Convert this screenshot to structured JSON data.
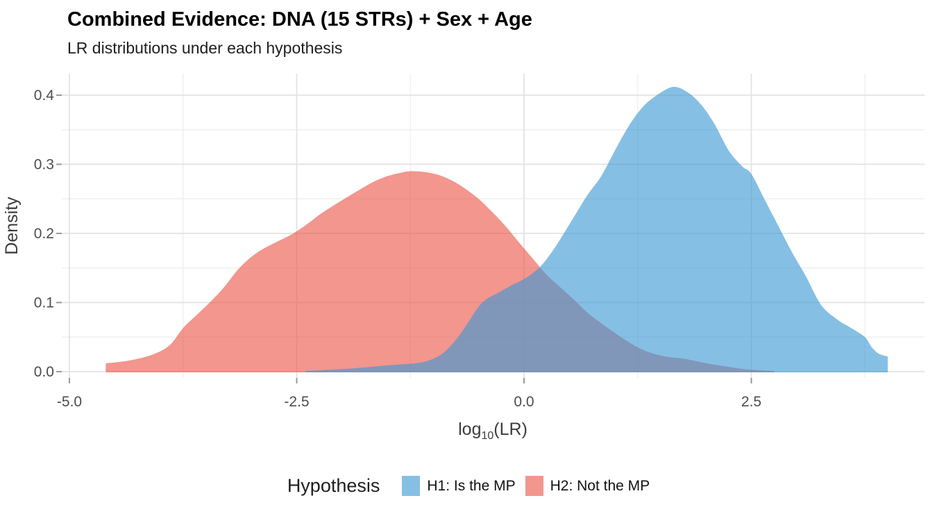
{
  "title": "Combined Evidence: DNA (15 STRs) + Sex + Age",
  "subtitle": "LR distributions under each hypothesis",
  "chart_data": {
    "type": "area",
    "title": "Combined Evidence: DNA (15 STRs) + Sex + Age",
    "subtitle": "LR distributions under each hypothesis",
    "xlabel": "log10(LR)",
    "xlabel_parts": {
      "prefix": "log",
      "sub": "10",
      "suffix": "(LR)"
    },
    "ylabel": "Density",
    "xlim": [
      -5.08,
      4.4
    ],
    "ylim": [
      0,
      0.431
    ],
    "grid": true,
    "legend_position": "bottom",
    "legend_title": "Hypothesis",
    "x_ticks": [
      {
        "v": -5.0,
        "label": "-5.0"
      },
      {
        "v": -2.5,
        "label": "-2.5"
      },
      {
        "v": 0.0,
        "label": "0.0"
      },
      {
        "v": 2.5,
        "label": "2.5"
      }
    ],
    "x_minor": [
      -3.75,
      -1.25,
      1.25,
      3.75
    ],
    "y_ticks": [
      {
        "v": 0.0,
        "label": "0.0"
      },
      {
        "v": 0.1,
        "label": "0.1"
      },
      {
        "v": 0.2,
        "label": "0.2"
      },
      {
        "v": 0.3,
        "label": "0.3"
      },
      {
        "v": 0.4,
        "label": "0.4"
      }
    ],
    "y_minor": [
      0.05,
      0.15,
      0.25,
      0.35
    ],
    "series": [
      {
        "name": "H1: Is the MP",
        "color": "#3B97D3",
        "opacity": 0.62,
        "peak": {
          "x": 1.64,
          "density": 0.41
        },
        "points": [
          [
            -2.4,
            0.001
          ],
          [
            -2.1,
            0.003
          ],
          [
            -1.85,
            0.005
          ],
          [
            -1.6,
            0.008
          ],
          [
            -1.4,
            0.01
          ],
          [
            -1.2,
            0.012
          ],
          [
            -1.05,
            0.016
          ],
          [
            -0.9,
            0.026
          ],
          [
            -0.75,
            0.046
          ],
          [
            -0.62,
            0.07
          ],
          [
            -0.5,
            0.094
          ],
          [
            -0.4,
            0.106
          ],
          [
            -0.3,
            0.113
          ],
          [
            -0.15,
            0.124
          ],
          [
            0.0,
            0.134
          ],
          [
            0.1,
            0.143
          ],
          [
            0.2,
            0.155
          ],
          [
            0.3,
            0.172
          ],
          [
            0.4,
            0.192
          ],
          [
            0.55,
            0.224
          ],
          [
            0.7,
            0.256
          ],
          [
            0.85,
            0.283
          ],
          [
            1.0,
            0.32
          ],
          [
            1.15,
            0.355
          ],
          [
            1.3,
            0.382
          ],
          [
            1.45,
            0.399
          ],
          [
            1.64,
            0.412
          ],
          [
            1.8,
            0.404
          ],
          [
            1.95,
            0.386
          ],
          [
            2.1,
            0.357
          ],
          [
            2.25,
            0.32
          ],
          [
            2.4,
            0.297
          ],
          [
            2.5,
            0.286
          ],
          [
            2.65,
            0.248
          ],
          [
            2.8,
            0.21
          ],
          [
            2.95,
            0.172
          ],
          [
            3.1,
            0.138
          ],
          [
            3.27,
            0.096
          ],
          [
            3.45,
            0.075
          ],
          [
            3.6,
            0.063
          ],
          [
            3.75,
            0.05
          ],
          [
            3.82,
            0.036
          ],
          [
            3.9,
            0.026
          ],
          [
            4.0,
            0.022
          ]
        ]
      },
      {
        "name": "H2: Not the MP",
        "color": "#EA5548",
        "opacity": 0.62,
        "peak": {
          "x": -1.25,
          "density": 0.29
        },
        "points": [
          [
            -4.6,
            0.012
          ],
          [
            -4.35,
            0.016
          ],
          [
            -4.1,
            0.024
          ],
          [
            -3.9,
            0.038
          ],
          [
            -3.75,
            0.063
          ],
          [
            -3.6,
            0.082
          ],
          [
            -3.45,
            0.101
          ],
          [
            -3.3,
            0.122
          ],
          [
            -3.15,
            0.147
          ],
          [
            -3.0,
            0.166
          ],
          [
            -2.85,
            0.179
          ],
          [
            -2.7,
            0.189
          ],
          [
            -2.55,
            0.199
          ],
          [
            -2.4,
            0.212
          ],
          [
            -2.25,
            0.227
          ],
          [
            -2.1,
            0.24
          ],
          [
            -1.95,
            0.252
          ],
          [
            -1.8,
            0.264
          ],
          [
            -1.65,
            0.275
          ],
          [
            -1.5,
            0.283
          ],
          [
            -1.35,
            0.288
          ],
          [
            -1.25,
            0.29
          ],
          [
            -1.1,
            0.289
          ],
          [
            -0.95,
            0.285
          ],
          [
            -0.8,
            0.277
          ],
          [
            -0.65,
            0.265
          ],
          [
            -0.5,
            0.25
          ],
          [
            -0.35,
            0.231
          ],
          [
            -0.2,
            0.21
          ],
          [
            -0.05,
            0.186
          ],
          [
            0.1,
            0.163
          ],
          [
            0.25,
            0.14
          ],
          [
            0.4,
            0.122
          ],
          [
            0.55,
            0.104
          ],
          [
            0.7,
            0.085
          ],
          [
            0.85,
            0.07
          ],
          [
            1.0,
            0.056
          ],
          [
            1.15,
            0.043
          ],
          [
            1.3,
            0.032
          ],
          [
            1.45,
            0.025
          ],
          [
            1.6,
            0.021
          ],
          [
            1.75,
            0.019
          ],
          [
            1.9,
            0.015
          ],
          [
            2.05,
            0.011
          ],
          [
            2.2,
            0.008
          ],
          [
            2.4,
            0.004
          ],
          [
            2.6,
            0.002
          ],
          [
            2.75,
            0.001
          ]
        ]
      }
    ],
    "style": {
      "major_grid_color": "#e2e2e2",
      "minor_grid_color": "#efefef",
      "tick_color": "#999999",
      "tick_label_color": "#4d4d4d",
      "axis_title_color": "#3d3d3d"
    }
  }
}
